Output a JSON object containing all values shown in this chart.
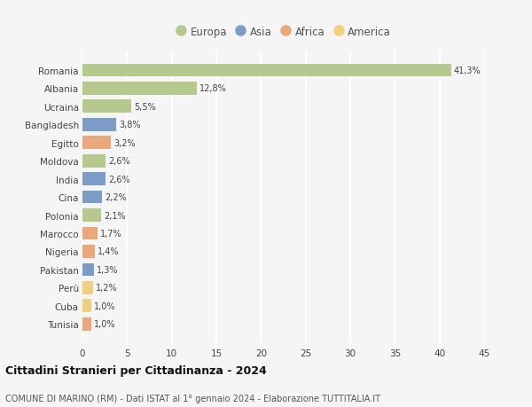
{
  "countries": [
    "Romania",
    "Albania",
    "Ucraina",
    "Bangladesh",
    "Egitto",
    "Moldova",
    "India",
    "Cina",
    "Polonia",
    "Marocco",
    "Nigeria",
    "Pakistan",
    "Perù",
    "Cuba",
    "Tunisia"
  ],
  "values": [
    41.3,
    12.8,
    5.5,
    3.8,
    3.2,
    2.6,
    2.6,
    2.2,
    2.1,
    1.7,
    1.4,
    1.3,
    1.2,
    1.0,
    1.0
  ],
  "labels": [
    "41,3%",
    "12,8%",
    "5,5%",
    "3,8%",
    "3,2%",
    "2,6%",
    "2,6%",
    "2,2%",
    "2,1%",
    "1,7%",
    "1,4%",
    "1,3%",
    "1,2%",
    "1,0%",
    "1,0%"
  ],
  "continents": [
    "Europa",
    "Europa",
    "Europa",
    "Asia",
    "Africa",
    "Europa",
    "Asia",
    "Asia",
    "Europa",
    "Africa",
    "Africa",
    "Asia",
    "America",
    "America",
    "Africa"
  ],
  "continent_colors": {
    "Europa": "#b5c98e",
    "Asia": "#7b9cc7",
    "Africa": "#e8a87c",
    "America": "#f0d080"
  },
  "legend_order": [
    "Europa",
    "Asia",
    "Africa",
    "America"
  ],
  "xlim": [
    0,
    45
  ],
  "xticks": [
    0,
    5,
    10,
    15,
    20,
    25,
    30,
    35,
    40,
    45
  ],
  "title": "Cittadini Stranieri per Cittadinanza - 2024",
  "subtitle": "COMUNE DI MARINO (RM) - Dati ISTAT al 1° gennaio 2024 - Elaborazione TUTTITALIA.IT",
  "bg_color": "#f5f5f5",
  "grid_color": "#ffffff",
  "bar_height": 0.72
}
